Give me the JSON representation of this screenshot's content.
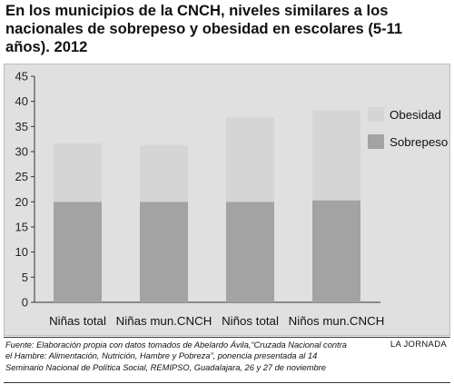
{
  "title": "En los municipios de la CNCH, niveles similares a los nacionales de sobrepeso y obesidad en escolares (5-11 años). 2012",
  "source": "Fuente: Elaboración propia con datos tomados de Abelardo Ávila,“Cruzada Nacional contra el Hambre: Alimentación, Nutrición, Hambre y Pobreza”, ponencia presentada al 14 Seminario Nacional de Política Social, REMIPSO, Guadalajara, 26 y 27 de noviembre",
  "credit": "LA JORNADA",
  "colors": {
    "sobrepeso": "#a3a3a3",
    "obesidad": "#d5d5d5",
    "panel": "#e0e0e0"
  },
  "chart_data": {
    "type": "bar",
    "stacked": true,
    "categories": [
      "Niñas total",
      "Niñas mun.CNCH",
      "Niños total",
      "Niños mun.CNCH"
    ],
    "series": [
      {
        "name": "Sobrepeso",
        "values": [
          20,
          20,
          20,
          20.3
        ]
      },
      {
        "name": "Obesidad",
        "values": [
          11.7,
          11.3,
          16.8,
          17.9
        ]
      }
    ],
    "ylim": [
      0,
      45
    ],
    "yticks": [
      0,
      5,
      10,
      15,
      20,
      25,
      30,
      35,
      40,
      45
    ],
    "legend": "right",
    "grid": false
  }
}
